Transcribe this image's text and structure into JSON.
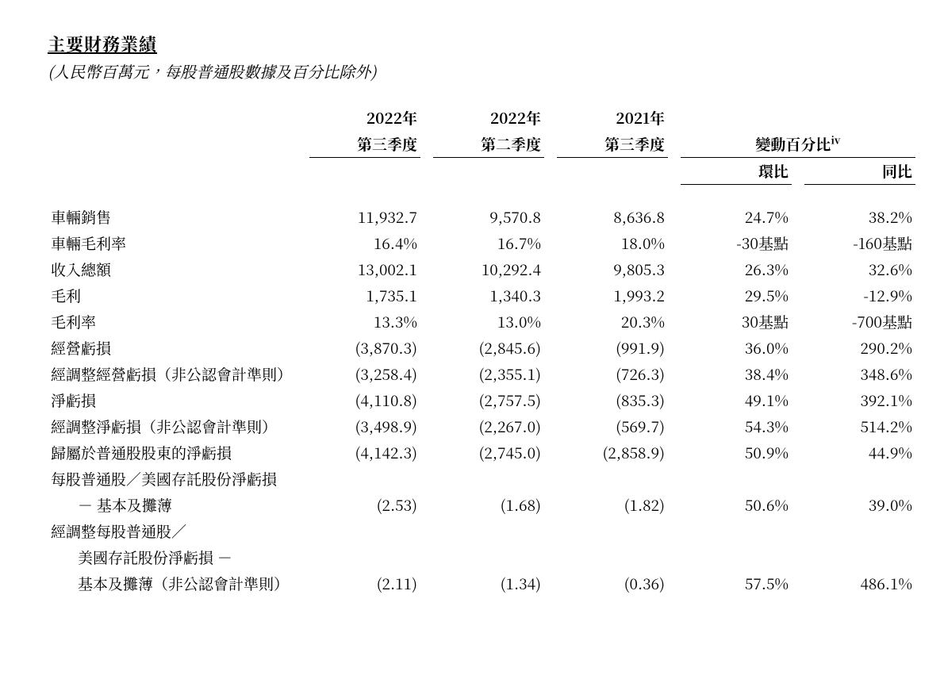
{
  "title": "主要財務業績",
  "subtitle": "(人民幣百萬元，每股普通股數據及百分比除外)",
  "headers": {
    "col1_l1": "2022年",
    "col1_l2": "第三季度",
    "col2_l1": "2022年",
    "col2_l2": "第二季度",
    "col3_l1": "2021年",
    "col3_l2": "第三季度",
    "change_label": "變動百分比",
    "change_sup": "iv",
    "qoq": "環比",
    "yoy": "同比"
  },
  "rows": [
    {
      "label": "車輛銷售",
      "c1": "11,932.7",
      "c2": "9,570.8",
      "c3": "8,636.8",
      "qoq": "24.7%",
      "yoy": "38.2%"
    },
    {
      "label": "車輛毛利率",
      "c1": "16.4%",
      "c2": "16.7%",
      "c3": "18.0%",
      "qoq": "-30基點",
      "yoy": "-160基點"
    },
    {
      "label": "收入總額",
      "c1": "13,002.1",
      "c2": "10,292.4",
      "c3": "9,805.3",
      "qoq": "26.3%",
      "yoy": "32.6%"
    },
    {
      "label": "毛利",
      "c1": "1,735.1",
      "c2": "1,340.3",
      "c3": "1,993.2",
      "qoq": "29.5%",
      "yoy": "-12.9%"
    },
    {
      "label": "毛利率",
      "c1": "13.3%",
      "c2": "13.0%",
      "c3": "20.3%",
      "qoq": "30基點",
      "yoy": "-700基點"
    },
    {
      "label": "經營虧損",
      "c1": "(3,870.3)",
      "c2": "(2,845.6)",
      "c3": "(991.9)",
      "qoq": "36.0%",
      "yoy": "290.2%"
    },
    {
      "label": "經調整經營虧損（非公認會計準則）",
      "c1": "(3,258.4)",
      "c2": "(2,355.1)",
      "c3": "(726.3)",
      "qoq": "38.4%",
      "yoy": "348.6%"
    },
    {
      "label": "淨虧損",
      "c1": "(4,110.8)",
      "c2": "(2,757.5)",
      "c3": "(835.3)",
      "qoq": "49.1%",
      "yoy": "392.1%"
    },
    {
      "label": "經調整淨虧損（非公認會計準則）",
      "c1": "(3,498.9)",
      "c2": "(2,267.0)",
      "c3": "(569.7)",
      "qoq": "54.3%",
      "yoy": "514.2%"
    },
    {
      "label": "歸屬於普通股股東的淨虧損",
      "c1": "(4,142.3)",
      "c2": "(2,745.0)",
      "c3": "(2,858.9)",
      "qoq": "50.9%",
      "yoy": "44.9%"
    }
  ],
  "multi1": {
    "l1": "每股普通股／美國存託股份淨虧損",
    "l2": "－ 基本及攤薄",
    "c1": "(2.53)",
    "c2": "(1.68)",
    "c3": "(1.82)",
    "qoq": "50.6%",
    "yoy": "39.0%"
  },
  "multi2": {
    "l1": "經調整每股普通股／",
    "l2": "美國存託股份淨虧損 －",
    "l3": "基本及攤薄（非公認會計準則）",
    "c1": "(2.11)",
    "c2": "(1.34)",
    "c3": "(0.36)",
    "qoq": "57.5%",
    "yoy": "486.1%"
  },
  "style": {
    "text_color": "#000000",
    "background_color": "#ffffff",
    "title_fontsize": 22,
    "body_fontsize": 19,
    "subtitle_fontsize": 20,
    "font_family": "serif"
  }
}
